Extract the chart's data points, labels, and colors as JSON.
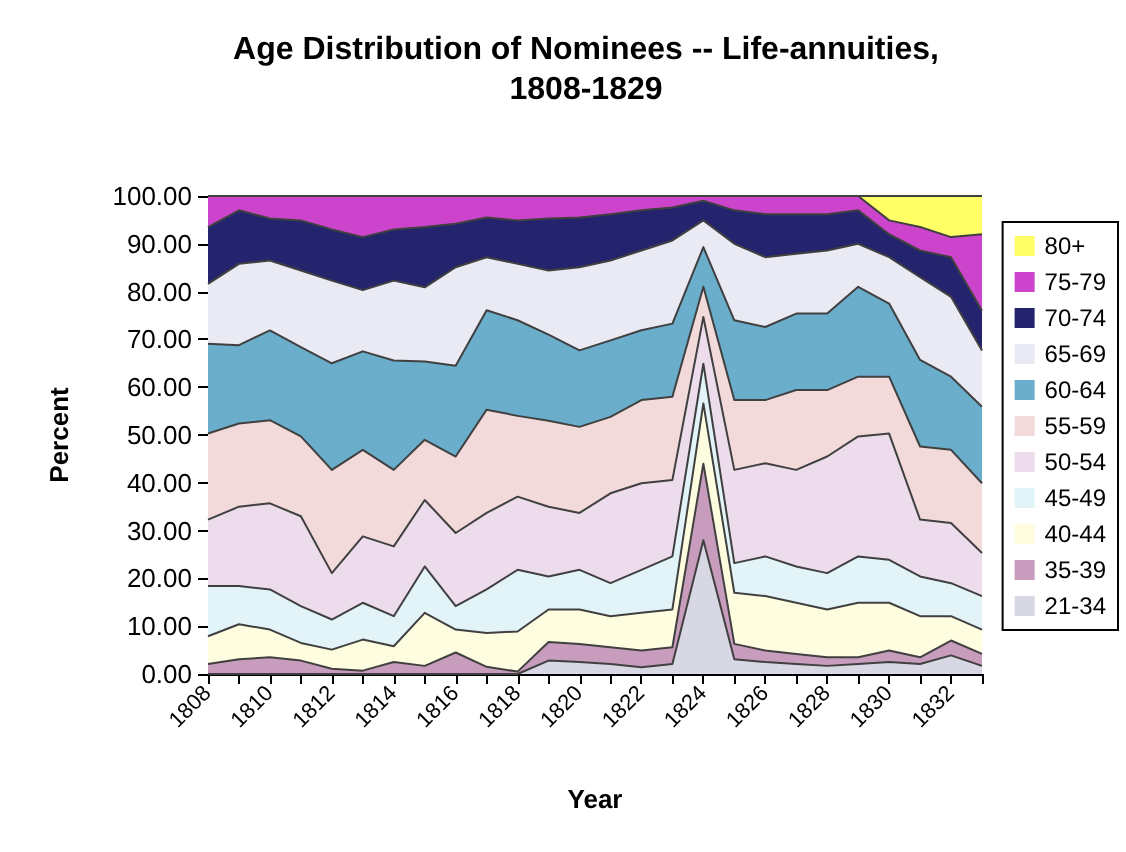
{
  "chart_data": {
    "type": "area",
    "title": "Age Distribution of Nominees -- Life-annuities,\n1808-1829",
    "xlabel": "Year",
    "ylabel": "Percent",
    "stacked": true,
    "legend": "right",
    "grid": false,
    "categories": [
      "1808",
      null,
      "1810",
      null,
      "1812",
      null,
      "1814",
      null,
      "1816",
      null,
      "1818",
      null,
      "1820",
      null,
      "1822",
      null,
      "1824",
      null,
      "1826",
      null,
      "1828",
      null,
      "1830",
      null,
      "1832",
      null
    ],
    "ylim": [
      0,
      100
    ],
    "yticks": [
      {
        "value": 0,
        "label": "0.00"
      },
      {
        "value": 10,
        "label": "10.00"
      },
      {
        "value": 20,
        "label": "20.00"
      },
      {
        "value": 30,
        "label": "30.00"
      },
      {
        "value": 40,
        "label": "40.00"
      },
      {
        "value": 50,
        "label": "50.00"
      },
      {
        "value": 60,
        "label": "60.00"
      },
      {
        "value": 70,
        "label": "70.00"
      },
      {
        "value": 80,
        "label": "80.00"
      },
      {
        "value": 90,
        "label": "90.00"
      },
      {
        "value": 100,
        "label": "100.00"
      }
    ],
    "series": [
      {
        "name": "21-34",
        "color": "#d8d8e4",
        "values": [
          0,
          0,
          0,
          0,
          0,
          0,
          0,
          0,
          0,
          0,
          0,
          2.8,
          2.5,
          2.1,
          1.4,
          2.1,
          28.0,
          3.1,
          2.5,
          2.1,
          1.7,
          2.1,
          2.5,
          2.1,
          3.9,
          1.7
        ]
      },
      {
        "name": "35-39",
        "color": "#c89cbc",
        "values": [
          2.1,
          3.1,
          3.5,
          2.8,
          1.1,
          0.7,
          2.5,
          1.7,
          4.5,
          1.5,
          0.5,
          3.9,
          3.8,
          3.5,
          3.5,
          3.5,
          16.0,
          3.2,
          2.4,
          2.1,
          1.8,
          1.4,
          2.4,
          1.4,
          3.1,
          2.5
        ]
      },
      {
        "name": "40-44",
        "color": "#fffde0",
        "values": [
          5.8,
          7.3,
          5.8,
          3.7,
          4.0,
          6.5,
          3.3,
          11.1,
          4.8,
          7.1,
          8.4,
          6.8,
          7.2,
          6.5,
          7.9,
          7.9,
          12.6,
          10.7,
          11.4,
          10.7,
          10.0,
          11.4,
          10.0,
          8.6,
          5.1,
          5.1
        ]
      },
      {
        "name": "45-49",
        "color": "#e2f4f8",
        "values": [
          10.5,
          8.0,
          8.4,
          7.7,
          6.3,
          7.7,
          6.3,
          9.7,
          4.9,
          9.1,
          12.9,
          6.9,
          8.3,
          6.9,
          9.0,
          11.1,
          8.3,
          6.2,
          8.3,
          7.6,
          7.6,
          9.7,
          9.0,
          8.3,
          6.9,
          7.0
        ]
      },
      {
        "name": "50-54",
        "color": "#ecdcec",
        "values": [
          13.9,
          16.6,
          18.0,
          18.8,
          9.7,
          13.9,
          14.6,
          13.9,
          15.3,
          16.0,
          15.3,
          14.6,
          11.9,
          18.8,
          18.1,
          16.0,
          9.8,
          19.5,
          19.5,
          20.2,
          24.4,
          25.1,
          26.4,
          11.9,
          12.6,
          9.0
        ]
      },
      {
        "name": "55-59",
        "color": "#f2dada",
        "values": [
          18.0,
          17.4,
          17.4,
          16.7,
          21.6,
          18.1,
          16.0,
          12.6,
          16.0,
          21.6,
          16.9,
          18.0,
          18.0,
          16.0,
          17.4,
          17.4,
          6.3,
          14.6,
          13.2,
          16.7,
          13.9,
          12.5,
          11.9,
          15.3,
          15.3,
          14.6
        ]
      },
      {
        "name": "60-64",
        "color": "#6aaecc",
        "values": [
          18.8,
          16.4,
          18.8,
          18.7,
          22.3,
          20.6,
          22.9,
          16.4,
          19.0,
          20.8,
          20.0,
          18.0,
          16.0,
          16.0,
          14.6,
          15.3,
          8.3,
          16.7,
          15.3,
          16.0,
          16.0,
          18.8,
          15.3,
          18.1,
          15.3,
          16.0
        ]
      },
      {
        "name": "65-69",
        "color": "#eaeaf4",
        "values": [
          12.5,
          17.0,
          14.6,
          16.0,
          17.3,
          12.8,
          16.7,
          15.5,
          20.6,
          11.1,
          11.8,
          13.4,
          17.4,
          16.7,
          16.7,
          17.4,
          5.6,
          16.0,
          14.6,
          12.5,
          13.2,
          9.0,
          9.7,
          17.3,
          16.7,
          11.8
        ]
      },
      {
        "name": "70-74",
        "color": "#24246e",
        "values": [
          11.9,
          11.2,
          8.8,
          10.5,
          10.7,
          11.1,
          10.7,
          12.6,
          9.1,
          8.3,
          9.1,
          10.9,
          10.4,
          9.7,
          8.4,
          6.9,
          4.1,
          7.0,
          9.0,
          8.3,
          7.6,
          7.0,
          4.8,
          5.6,
          8.3,
          8.3
        ]
      },
      {
        "name": "75-79",
        "color": "#cc44cc",
        "values": [
          6.5,
          3.0,
          4.7,
          5.1,
          7.0,
          8.6,
          7.0,
          6.5,
          5.8,
          4.5,
          5.1,
          4.7,
          4.5,
          3.8,
          3.0,
          2.4,
          1.0,
          3.0,
          3.8,
          3.8,
          3.8,
          3.0,
          2.9,
          4.9,
          4.2,
          16.0
        ]
      },
      {
        "name": "80+",
        "color": "#ffff66",
        "values": [
          0,
          0,
          0,
          0,
          0,
          0,
          0,
          0,
          0,
          0,
          0,
          0,
          0,
          0,
          0,
          0,
          0,
          0,
          0,
          0,
          0,
          0,
          5.1,
          6.5,
          8.6,
          8.0
        ]
      }
    ]
  }
}
